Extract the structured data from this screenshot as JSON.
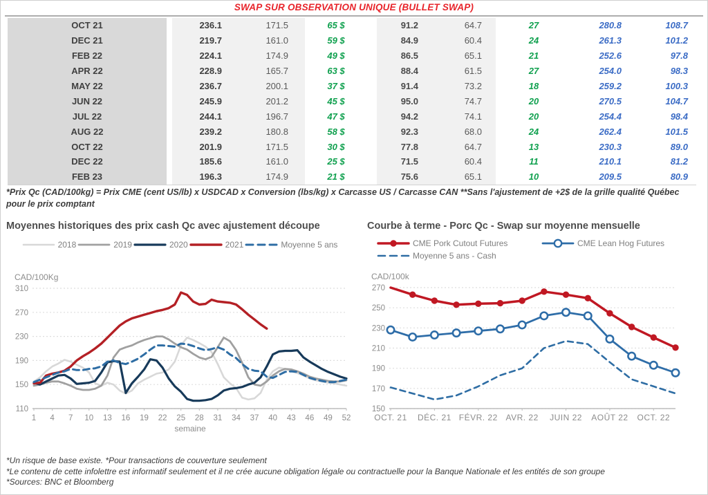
{
  "title": "SWAP SUR OBSERVATION UNIQUE (BULLET SWAP)",
  "table": {
    "rows": [
      [
        "OCT 21",
        "236.1",
        "171.5",
        "65 $",
        "91.2",
        "64.7",
        "27",
        "280.8",
        "108.7"
      ],
      [
        "DEC 21",
        "219.7",
        "161.0",
        "59 $",
        "84.9",
        "60.4",
        "24",
        "261.3",
        "101.2"
      ],
      [
        "FEB 22",
        "224.1",
        "174.9",
        "49 $",
        "86.5",
        "65.1",
        "21",
        "252.6",
        "97.8"
      ],
      [
        "APR 22",
        "228.9",
        "165.7",
        "63 $",
        "88.4",
        "61.5",
        "27",
        "254.0",
        "98.3"
      ],
      [
        "MAY 22",
        "236.7",
        "200.1",
        "37 $",
        "91.4",
        "73.2",
        "18",
        "259.2",
        "100.3"
      ],
      [
        "JUN 22",
        "245.9",
        "201.2",
        "45 $",
        "95.0",
        "74.7",
        "20",
        "270.5",
        "104.7"
      ],
      [
        "JUL 22",
        "244.1",
        "196.7",
        "47 $",
        "94.2",
        "74.1",
        "20",
        "254.4",
        "98.4"
      ],
      [
        "AUG 22",
        "239.2",
        "180.8",
        "58 $",
        "92.3",
        "68.0",
        "24",
        "262.4",
        "101.5"
      ],
      [
        "OCT 22",
        "201.9",
        "171.5",
        "30 $",
        "77.8",
        "64.7",
        "13",
        "230.3",
        "89.0"
      ],
      [
        "DEC 22",
        "185.6",
        "161.0",
        "25 $",
        "71.5",
        "60.4",
        "11",
        "210.1",
        "81.2"
      ],
      [
        "FEB 23",
        "196.3",
        "174.9",
        "21 $",
        "75.6",
        "65.1",
        "10",
        "209.5",
        "80.9"
      ]
    ]
  },
  "table_footnote": "*Prix Qc (CAD/100kg) = Prix CME (cent US/lb) x USDCAD x Conversion (lbs/kg) x Carcasse US / Carcasse CAN **Sans l'ajustement de +2$ de la grille qualité Québec pour le prix comptant",
  "sections": {
    "left_title": "Moyennes historiques des prix cash Qc avec ajustement découpe",
    "right_title": "Courbe à terme - Porc Qc - Swap sur moyenne mensuelle"
  },
  "footnotes": [
    "*Un risque de base existe. *Pour transactions de couverture seulement",
    "*Le contenu de cette infolettre est informatif seulement et il ne crée aucune obligation légale ou contractuelle pour la Banque Nationale et les entités de son groupe",
    "*Sources: BNC et Bloomberg"
  ],
  "colors": {
    "title_red": "#e8232a",
    "green_text": "#0fa04e",
    "blue_text": "#3a6bc5",
    "gridline": "#dddddd",
    "axis_text": "#8c8c8c"
  },
  "chart_data": [
    {
      "type": "line",
      "title": "Moyennes historiques des prix cash Qc avec ajustement découpe",
      "ylabel": "CAD/100Kg",
      "xlabel": "semaine",
      "ylim": [
        110,
        310
      ],
      "ytick_step": 40,
      "x_count": 52,
      "x_ticks": [
        {
          "p": 0,
          "label": "1"
        },
        {
          "p": 3,
          "label": "4"
        },
        {
          "p": 6,
          "label": "7"
        },
        {
          "p": 9,
          "label": "10"
        },
        {
          "p": 12,
          "label": "13"
        },
        {
          "p": 15,
          "label": "16"
        },
        {
          "p": 18,
          "label": "19"
        },
        {
          "p": 21,
          "label": "22"
        },
        {
          "p": 24,
          "label": "25"
        },
        {
          "p": 27,
          "label": "28"
        },
        {
          "p": 30,
          "label": "31"
        },
        {
          "p": 33,
          "label": "34"
        },
        {
          "p": 36,
          "label": "37"
        },
        {
          "p": 39,
          "label": "40"
        },
        {
          "p": 42,
          "label": "43"
        },
        {
          "p": 45,
          "label": "46"
        },
        {
          "p": 48,
          "label": "49"
        },
        {
          "p": 51,
          "label": "52"
        }
      ],
      "legend_position": "top-center",
      "grid": true,
      "series": [
        {
          "name": "2018",
          "color": "#d8d8d8",
          "width": 2.6,
          "values": [
            155,
            162,
            172,
            180,
            185,
            191,
            188,
            183,
            178,
            170,
            152,
            148,
            153,
            150,
            140,
            135,
            140,
            152,
            158,
            163,
            168,
            170,
            175,
            188,
            215,
            228,
            224,
            219,
            213,
            204,
            184,
            162,
            152,
            144,
            128,
            125,
            127,
            136,
            158,
            172,
            178,
            176,
            172,
            169,
            165,
            160,
            157,
            155,
            153,
            152,
            150,
            148
          ]
        },
        {
          "name": "2019",
          "color": "#a0a0a0",
          "width": 2.8,
          "values": [
            148,
            150,
            153,
            155,
            155,
            152,
            148,
            143,
            141,
            141,
            143,
            148,
            165,
            195,
            208,
            212,
            215,
            220,
            224,
            227,
            230,
            230,
            225,
            218,
            212,
            208,
            201,
            195,
            192,
            196,
            212,
            228,
            222,
            207,
            186,
            162,
            150,
            148,
            155,
            165,
            172,
            176,
            175,
            172,
            168,
            163,
            160,
            158,
            156,
            155,
            155,
            157
          ]
        },
        {
          "name": "2020",
          "color": "#173a5a",
          "width": 3.2,
          "values": [
            153,
            150,
            155,
            160,
            165,
            166,
            160,
            151,
            152,
            153,
            156,
            170,
            187,
            189,
            188,
            136,
            152,
            163,
            175,
            192,
            190,
            178,
            160,
            147,
            138,
            126,
            123,
            123,
            124,
            126,
            132,
            140,
            143,
            144,
            146,
            150,
            153,
            162,
            180,
            200,
            205,
            206,
            206,
            207,
            195,
            188,
            182,
            176,
            171,
            167,
            163,
            160
          ]
        },
        {
          "name": "2021",
          "color": "#b42025",
          "width": 3.4,
          "values": [
            152,
            153,
            165,
            168,
            170,
            173,
            180,
            190,
            197,
            203,
            210,
            218,
            228,
            238,
            248,
            255,
            260,
            263,
            266,
            269,
            272,
            274,
            277,
            283,
            303,
            299,
            288,
            283,
            284,
            291,
            288,
            287,
            286,
            283,
            275,
            266,
            258,
            250,
            243
          ]
        },
        {
          "name": "Moyenne 5 ans",
          "color": "#2e6da4",
          "width": 3,
          "dash": "9 6",
          "values": [
            154,
            158,
            162,
            166,
            170,
            172,
            176,
            174,
            174,
            176,
            177,
            180,
            188,
            190,
            186,
            184,
            188,
            193,
            200,
            208,
            215,
            215,
            214,
            213,
            218,
            217,
            214,
            210,
            207,
            209,
            212,
            208,
            200,
            194,
            184,
            176,
            173,
            172,
            163,
            161,
            166,
            171,
            172,
            171,
            166,
            161,
            158,
            156,
            154,
            154,
            156,
            158
          ]
        }
      ]
    },
    {
      "type": "line",
      "title": "Courbe à terme - Porc Qc - Swap sur moyenne mensuelle",
      "ylabel": "CAD/100k",
      "xlabel": "",
      "ylim": [
        150,
        270
      ],
      "ytick_step": 20,
      "x_count": 14,
      "x_ticks": [
        {
          "p": 0,
          "label": "OCT. 21"
        },
        {
          "p": 2,
          "label": "DÉC. 21"
        },
        {
          "p": 4,
          "label": "FÉVR. 22"
        },
        {
          "p": 6,
          "label": "AVR. 22"
        },
        {
          "p": 8,
          "label": "JUIN 22"
        },
        {
          "p": 10,
          "label": "AOÛT 22"
        },
        {
          "p": 12,
          "label": "OCT. 22"
        }
      ],
      "legend_position": "top-left",
      "grid": true,
      "series": [
        {
          "name": "CME Pork Cutout Futures",
          "color": "#c01823",
          "width": 3.5,
          "marker": "filled",
          "marker_r": 4.2,
          "skip_first_marker": true,
          "values": [
            270,
            263,
            257,
            253,
            254,
            254.5,
            257,
            266,
            263,
            259.5,
            244.5,
            231,
            220.5,
            210.5
          ]
        },
        {
          "name": "CME Lean Hog Futures",
          "color": "#2e6da8",
          "width": 2.8,
          "marker": "open",
          "marker_r": 5.2,
          "values": [
            228,
            221,
            223,
            225,
            227,
            229,
            233,
            242,
            245.5,
            242,
            219,
            202,
            193,
            185.5
          ]
        },
        {
          "name": "Moyenne 5 ans - Cash",
          "color": "#2e6da4",
          "width": 2.6,
          "dash": "8 6",
          "values": [
            171,
            165,
            159,
            163,
            172,
            183,
            190,
            210,
            217,
            214,
            196,
            179,
            172,
            165
          ]
        }
      ]
    }
  ]
}
